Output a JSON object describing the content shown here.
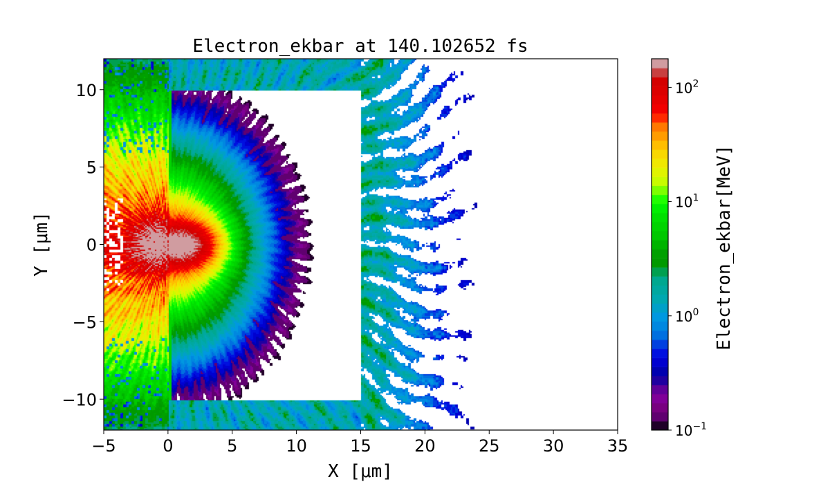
{
  "chart_data": {
    "type": "heatmap",
    "title": "Electron_ekbar at 140.102652 fs",
    "xlabel": "X [μm]",
    "ylabel": "Y [μm]",
    "xlim": [
      -5,
      35
    ],
    "ylim": [
      -12,
      12
    ],
    "xticks": [
      -5,
      0,
      5,
      10,
      15,
      20,
      25,
      30,
      35
    ],
    "xtick_labels": [
      "−5",
      "0",
      "5",
      "10",
      "15",
      "20",
      "25",
      "30",
      "35"
    ],
    "yticks": [
      -10,
      -5,
      0,
      5,
      10
    ],
    "ytick_labels": [
      "−10",
      "−5",
      "0",
      "5",
      "10"
    ],
    "grid": false,
    "colorbar": {
      "label": "Electron_ekbar[MeV]",
      "scale": "log",
      "range": [
        0.1,
        178
      ],
      "ticks": [
        {
          "value": 0.1,
          "base": "10",
          "exp": "−1"
        },
        {
          "value": 1,
          "base": "10",
          "exp": "0"
        },
        {
          "value": 10,
          "base": "10",
          "exp": "1"
        },
        {
          "value": 100,
          "base": "10",
          "exp": "2"
        }
      ],
      "colors_bottom_to_top": [
        "#200028",
        "#600070",
        "#780080",
        "#800098",
        "#600098",
        "#2000a0",
        "#0000b0",
        "#0000d0",
        "#0010e0",
        "#0040e0",
        "#0070e0",
        "#0088e0",
        "#0098e0",
        "#00a0c8",
        "#00a8b0",
        "#00a8a0",
        "#00a890",
        "#00a050",
        "#009a00",
        "#00a000",
        "#00b400",
        "#00c800",
        "#00d400",
        "#00e000",
        "#00f000",
        "#20ff00",
        "#7cff00",
        "#c8fc00",
        "#e0f400",
        "#f0e800",
        "#f8d800",
        "#ffbe00",
        "#ff9c00",
        "#ff7800",
        "#ff2a00",
        "#f20000",
        "#e60000",
        "#dc0000",
        "#d40000",
        "#c84040",
        "#d09ca0"
      ]
    },
    "empty_region": {
      "x": [
        0,
        15
      ],
      "y": [
        -10,
        10
      ]
    },
    "description_of_field": "peak ~178 MeV near (3,0); hot lobes x<0; hemispherical decay to 0.1 MeV at r≈11 μm; 0.3–2 MeV streaks outside target box to x≈23"
  }
}
